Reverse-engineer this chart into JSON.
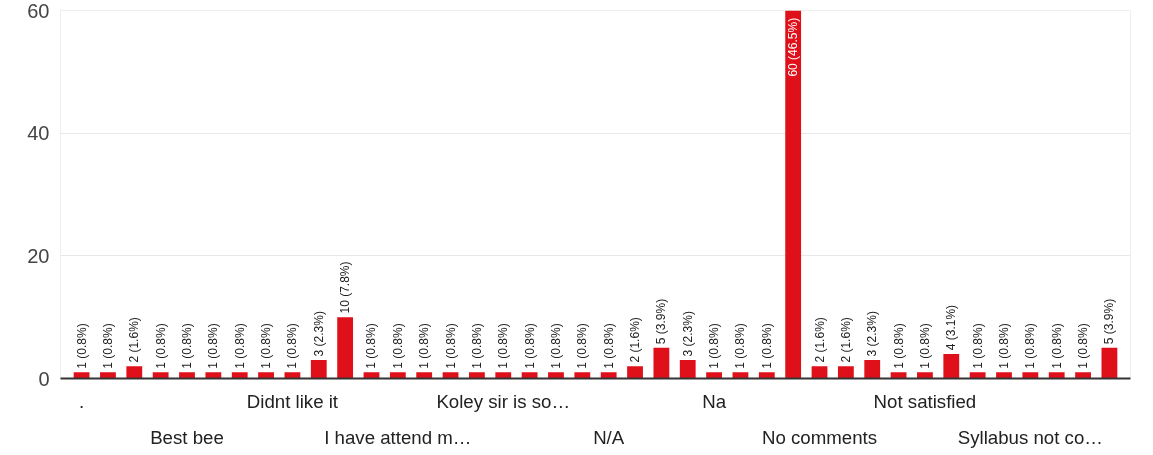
{
  "chart_data": {
    "type": "bar",
    "categories": [
      ".",
      null,
      null,
      null,
      "Best bee",
      null,
      null,
      null,
      "Didnt like it",
      null,
      null,
      null,
      "I have attend m…",
      null,
      null,
      null,
      "Koley sir is so…",
      null,
      null,
      null,
      "N/A",
      null,
      null,
      null,
      "Na",
      null,
      null,
      null,
      "No comments",
      null,
      null,
      null,
      "Not satisfied",
      null,
      null,
      null,
      "Syllabus not co…",
      null,
      null,
      null
    ],
    "values": [
      1,
      1,
      2,
      1,
      1,
      1,
      1,
      1,
      1,
      3,
      10,
      1,
      1,
      1,
      1,
      1,
      1,
      1,
      1,
      1,
      1,
      2,
      5,
      3,
      1,
      1,
      1,
      60,
      2,
      2,
      3,
      1,
      1,
      4,
      1,
      1,
      1,
      1,
      1,
      5
    ],
    "value_labels": [
      "1 (0.8%)",
      "1 (0.8%)",
      "2 (1.6%)",
      "1 (0.8%)",
      "1 (0.8%)",
      "1 (0.8%)",
      "1 (0.8%)",
      "1 (0.8%)",
      "1 (0.8%)",
      "3 (2.3%)",
      "10 (7.8%)",
      "1 (0.8%)",
      "1 (0.8%)",
      "1 (0.8%)",
      "1 (0.8%)",
      "1 (0.8%)",
      "1 (0.8%)",
      "1 (0.8%)",
      "1 (0.8%)",
      "1 (0.8%)",
      "1 (0.8%)",
      "2 (1.6%)",
      "5 (3.9%)",
      "3 (2.3%)",
      "1 (0.8%)",
      "1 (0.8%)",
      "1 (0.8%)",
      "60 (46.5%)",
      "2 (1.6%)",
      "2 (1.6%)",
      "3 (2.3%)",
      "1 (0.8%)",
      "1 (0.8%)",
      "4 (3.1%)",
      "1 (0.8%)",
      "1 (0.8%)",
      "1 (0.8%)",
      "1 (0.8%)",
      "1 (0.8%)",
      "5 (3.9%)"
    ],
    "color": "#e0101a",
    "ylim": [
      0,
      60
    ],
    "yticks": [
      0,
      20,
      40,
      60
    ],
    "grid": "y"
  }
}
